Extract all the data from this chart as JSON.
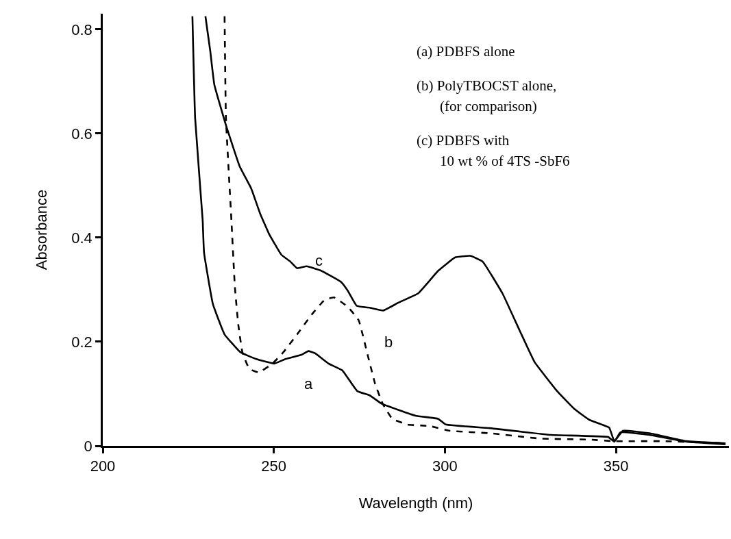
{
  "chart_data": {
    "type": "line",
    "xlabel": "Wavelength (nm)",
    "ylabel": "Absorbance",
    "xlim": [
      200,
      383
    ],
    "xticks": [
      200,
      250,
      300,
      350
    ],
    "ylim": [
      0,
      0.83
    ],
    "yticks": [
      0,
      0.2,
      0.4,
      0.6,
      0.8
    ],
    "legend": false,
    "marker": "none",
    "series": [
      {
        "name": "a",
        "color": "#000000",
        "line_style": "solid",
        "x": [
          226.2,
          227,
          229.2,
          229.6,
          232.2,
          235.6,
          240.2,
          244.7,
          250.1,
          253.5,
          258.1,
          260.1,
          262,
          266,
          270,
          274.4,
          278,
          281.5,
          291.4,
          298,
          300.2,
          313,
          331,
          347.7,
          349.5,
          351.3,
          359.8,
          370.6,
          382
        ],
        "values": [
          0.825,
          0.629,
          0.433,
          0.371,
          0.272,
          0.214,
          0.18,
          0.167,
          0.158,
          0.167,
          0.175,
          0.182,
          0.178,
          0.158,
          0.145,
          0.105,
          0.097,
          0.081,
          0.058,
          0.052,
          0.041,
          0.034,
          0.021,
          0.017,
          0.008,
          0.026,
          0.021,
          0.008,
          0.003
        ]
      },
      {
        "name": "b",
        "color": "#000000",
        "line_style": "dashed",
        "x": [
          235.6,
          236,
          237.6,
          238.6,
          239.6,
          240.8,
          242.8,
          245.6,
          249.6,
          252.8,
          256.8,
          260.8,
          264.8,
          267.6,
          271.6,
          274.8,
          277.4,
          279.6,
          281.8,
          284.6,
          289,
          295.6,
          301.4,
          313.6,
          327.8,
          342.4,
          349.5,
          363.8,
          382
        ],
        "values": [
          0.825,
          0.629,
          0.433,
          0.306,
          0.233,
          0.18,
          0.148,
          0.141,
          0.158,
          0.18,
          0.214,
          0.25,
          0.28,
          0.285,
          0.267,
          0.241,
          0.175,
          0.119,
          0.081,
          0.052,
          0.041,
          0.038,
          0.029,
          0.024,
          0.014,
          0.012,
          0.009,
          0.009,
          0.005
        ]
      },
      {
        "name": "c",
        "color": "#000000",
        "line_style": "solid",
        "x": [
          230,
          231.4,
          232.6,
          236,
          240,
          243.4,
          246,
          248.6,
          252.2,
          254.8,
          256.8,
          259.6,
          263.6,
          269.6,
          271.6,
          274.2,
          278.2,
          282,
          286.4,
          292.2,
          298,
          303,
          307.4,
          311,
          316.8,
          321.8,
          326.2,
          332.8,
          337.8,
          342.2,
          348,
          349.5,
          352,
          360,
          370.6,
          382
        ],
        "values": [
          0.825,
          0.759,
          0.694,
          0.616,
          0.537,
          0.494,
          0.446,
          0.407,
          0.367,
          0.354,
          0.341,
          0.345,
          0.337,
          0.315,
          0.298,
          0.269,
          0.265,
          0.26,
          0.275,
          0.293,
          0.336,
          0.362,
          0.365,
          0.354,
          0.293,
          0.222,
          0.161,
          0.105,
          0.071,
          0.05,
          0.035,
          0.009,
          0.029,
          0.024,
          0.009,
          0.005
        ]
      }
    ],
    "annotations": [
      "(a) PDBFS alone",
      "(b) PolyTBOCST alone,\n(for comparison)",
      "(c) PDBFS with\n10 wt % of 4TS -SbF6"
    ]
  }
}
